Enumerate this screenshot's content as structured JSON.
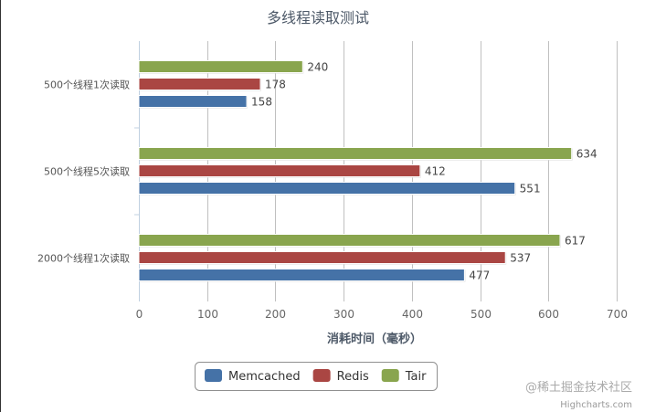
{
  "chart_data": {
    "type": "bar",
    "orientation": "horizontal",
    "title": "多线程读取测试",
    "xlabel": "消耗时间（毫秒）",
    "ylabel": "",
    "categories": [
      "500个线程1次读取",
      "500个线程5次读取",
      "2000个线程1次读取"
    ],
    "series": [
      {
        "name": "Memcached",
        "color": "#4572a7",
        "values": [
          158,
          551,
          477
        ]
      },
      {
        "name": "Redis",
        "color": "#aa4643",
        "values": [
          178,
          412,
          537
        ]
      },
      {
        "name": "Tair",
        "color": "#89a54e",
        "values": [
          240,
          634,
          617
        ]
      }
    ],
    "xlim": [
      0,
      700
    ],
    "xticks": [
      0,
      100,
      200,
      300,
      400,
      500,
      600,
      700
    ],
    "grid": true,
    "legend": "bottom",
    "data_labels": true
  },
  "credits": "Highcharts.com",
  "watermark": "@稀土掘金技术社区"
}
